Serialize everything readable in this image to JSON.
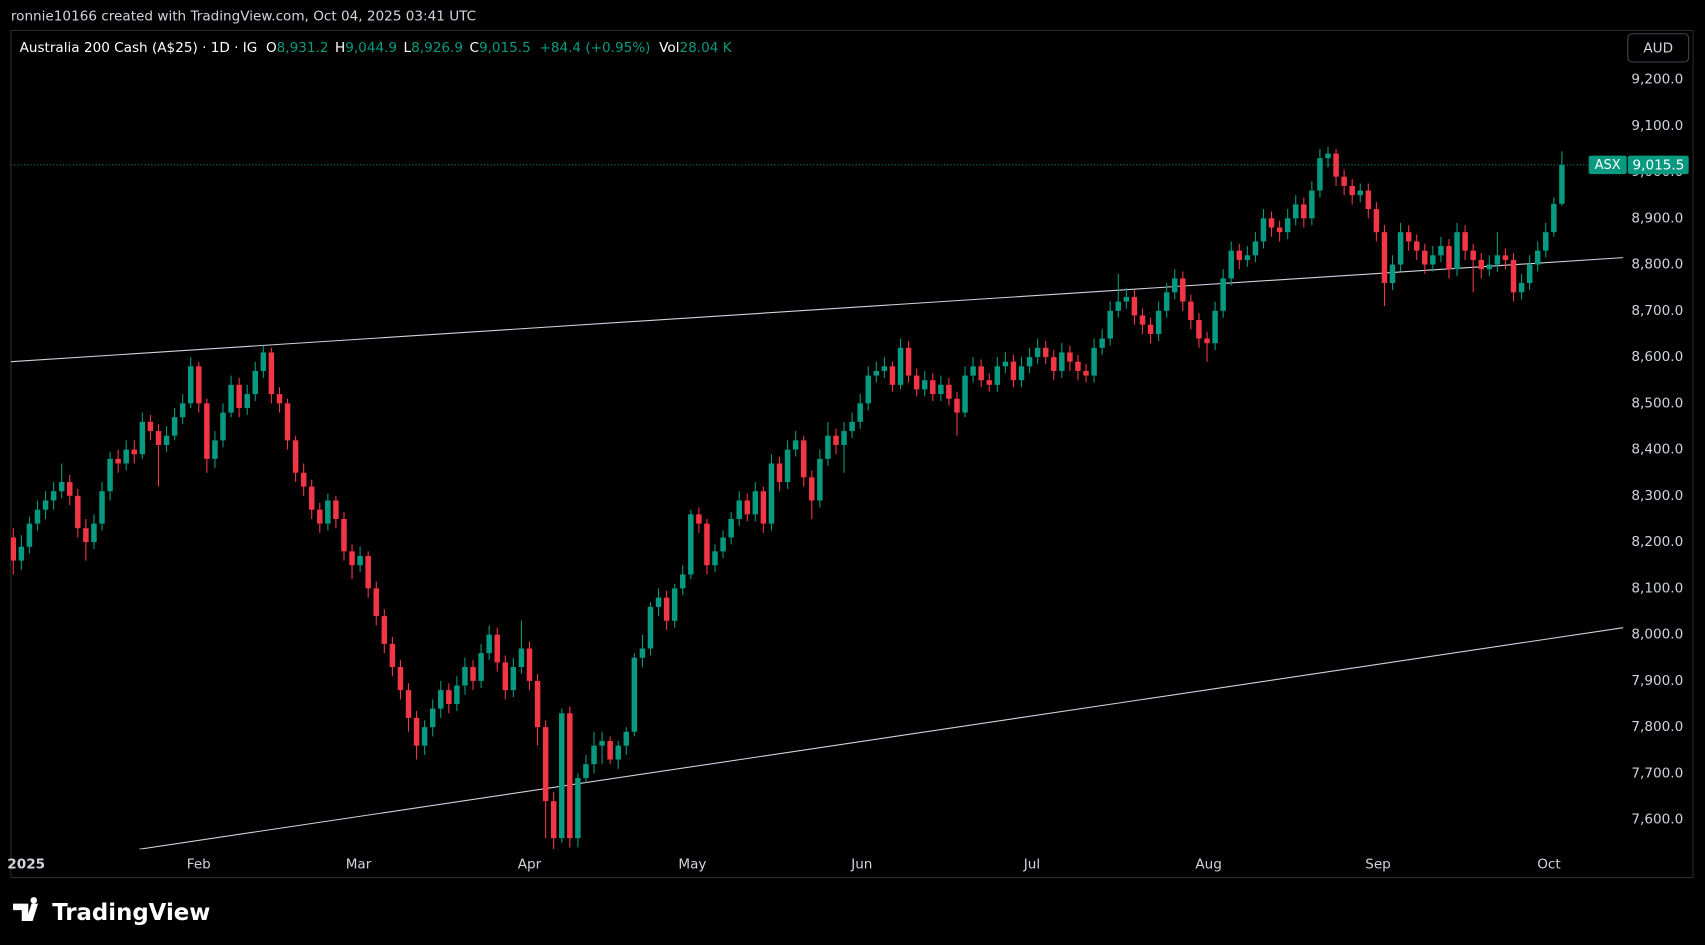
{
  "header": {
    "credit": "ronnie10166 created with TradingView.com, Oct 04, 2025 03:41 UTC"
  },
  "footer": {
    "brand": "TradingView"
  },
  "chart_data": {
    "type": "candlestick",
    "legend": {
      "symbol": "Australia 200 Cash (A$25) · 1D · IG",
      "fields": [
        {
          "key": "O",
          "value": "8,931.2"
        },
        {
          "key": "H",
          "value": "9,044.9"
        },
        {
          "key": "L",
          "value": "8,926.9"
        },
        {
          "key": "C",
          "value": "9,015.5"
        }
      ],
      "change": "+84.4 (+0.95%)",
      "volume": {
        "key": "Vol",
        "value": "28.04 K"
      }
    },
    "currency": "AUD",
    "exchange": "ASX",
    "last_price_label": "9,015.5",
    "colors": {
      "up": "#089981",
      "down": "#f23645",
      "trendline": "#d1d4dc"
    },
    "grid": false,
    "ylim": [
      7536,
      9306
    ],
    "yticks": [
      {
        "value": 7600,
        "label": "7,600.0"
      },
      {
        "value": 7700,
        "label": "7,700.0"
      },
      {
        "value": 7800,
        "label": "7,800.0"
      },
      {
        "value": 7900,
        "label": "7,900.0"
      },
      {
        "value": 8000,
        "label": "8,000.0"
      },
      {
        "value": 8100,
        "label": "8,100.0"
      },
      {
        "value": 8200,
        "label": "8,200.0"
      },
      {
        "value": 8300,
        "label": "8,300.0"
      },
      {
        "value": 8400,
        "label": "8,400.0"
      },
      {
        "value": 8500,
        "label": "8,500.0"
      },
      {
        "value": 8600,
        "label": "8,600.0"
      },
      {
        "value": 8700,
        "label": "8,700.0"
      },
      {
        "value": 8800,
        "label": "8,800.0"
      },
      {
        "value": 8900,
        "label": "8,900.0"
      },
      {
        "value": 9000,
        "label": "9,000.0"
      },
      {
        "value": 9100,
        "label": "9,100.0"
      },
      {
        "value": 9200,
        "label": "9,200.0"
      }
    ],
    "xlim": [
      -0.3,
      199.9
    ],
    "xticks": [
      {
        "value": 1.6,
        "label": "2025"
      },
      {
        "value": 23,
        "label": "Feb"
      },
      {
        "value": 42.8,
        "label": "Mar"
      },
      {
        "value": 64,
        "label": "Apr"
      },
      {
        "value": 84.2,
        "label": "May"
      },
      {
        "value": 105.2,
        "label": "Jun"
      },
      {
        "value": 126.3,
        "label": "Jul"
      },
      {
        "value": 148.2,
        "label": "Aug"
      },
      {
        "value": 169.2,
        "label": "Sep"
      },
      {
        "value": 190.4,
        "label": "Oct"
      }
    ],
    "trendlines": [
      {
        "x": [
          -0.3,
          199.6
        ],
        "y": [
          8590,
          8815
        ]
      },
      {
        "x": [
          15.6,
          199.6
        ],
        "y": [
          7536,
          8015
        ]
      }
    ],
    "candles": [
      [
        8210,
        8230,
        8130,
        8160
      ],
      [
        8160,
        8215,
        8140,
        8190
      ],
      [
        8190,
        8255,
        8175,
        8240
      ],
      [
        8240,
        8290,
        8225,
        8270
      ],
      [
        8270,
        8310,
        8250,
        8290
      ],
      [
        8290,
        8330,
        8270,
        8310
      ],
      [
        8310,
        8370,
        8295,
        8330
      ],
      [
        8330,
        8345,
        8280,
        8300
      ],
      [
        8300,
        8315,
        8210,
        8230
      ],
      [
        8230,
        8250,
        8160,
        8200
      ],
      [
        8200,
        8260,
        8185,
        8240
      ],
      [
        8240,
        8330,
        8225,
        8310
      ],
      [
        8310,
        8395,
        8290,
        8380
      ],
      [
        8380,
        8400,
        8350,
        8370
      ],
      [
        8370,
        8420,
        8355,
        8400
      ],
      [
        8400,
        8420,
        8370,
        8390
      ],
      [
        8390,
        8480,
        8380,
        8460
      ],
      [
        8460,
        8475,
        8420,
        8440
      ],
      [
        8440,
        8455,
        8320,
        8410
      ],
      [
        8410,
        8450,
        8395,
        8430
      ],
      [
        8430,
        8490,
        8420,
        8470
      ],
      [
        8470,
        8520,
        8455,
        8500
      ],
      [
        8500,
        8600,
        8490,
        8580
      ],
      [
        8580,
        8590,
        8480,
        8500
      ],
      [
        8500,
        8510,
        8350,
        8380
      ],
      [
        8380,
        8440,
        8360,
        8420
      ],
      [
        8420,
        8500,
        8405,
        8480
      ],
      [
        8480,
        8560,
        8470,
        8540
      ],
      [
        8540,
        8555,
        8470,
        8490
      ],
      [
        8490,
        8540,
        8475,
        8520
      ],
      [
        8520,
        8590,
        8505,
        8570
      ],
      [
        8570,
        8625,
        8555,
        8610
      ],
      [
        8610,
        8620,
        8500,
        8520
      ],
      [
        8520,
        8535,
        8480,
        8500
      ],
      [
        8500,
        8510,
        8400,
        8420
      ],
      [
        8420,
        8430,
        8330,
        8350
      ],
      [
        8350,
        8370,
        8300,
        8320
      ],
      [
        8320,
        8335,
        8250,
        8270
      ],
      [
        8270,
        8285,
        8220,
        8240
      ],
      [
        8240,
        8305,
        8225,
        8290
      ],
      [
        8290,
        8300,
        8230,
        8250
      ],
      [
        8250,
        8265,
        8160,
        8180
      ],
      [
        8180,
        8195,
        8120,
        8150
      ],
      [
        8150,
        8190,
        8135,
        8170
      ],
      [
        8170,
        8180,
        8080,
        8100
      ],
      [
        8100,
        8115,
        8020,
        8040
      ],
      [
        8040,
        8055,
        7960,
        7980
      ],
      [
        7980,
        7995,
        7910,
        7930
      ],
      [
        7930,
        7945,
        7860,
        7880
      ],
      [
        7880,
        7895,
        7790,
        7820
      ],
      [
        7820,
        7835,
        7730,
        7760
      ],
      [
        7760,
        7815,
        7740,
        7800
      ],
      [
        7800,
        7860,
        7780,
        7840
      ],
      [
        7840,
        7900,
        7820,
        7880
      ],
      [
        7880,
        7895,
        7830,
        7850
      ],
      [
        7850,
        7910,
        7835,
        7890
      ],
      [
        7890,
        7950,
        7870,
        7930
      ],
      [
        7930,
        7945,
        7880,
        7900
      ],
      [
        7900,
        7980,
        7885,
        7960
      ],
      [
        7960,
        8020,
        7945,
        8000
      ],
      [
        8000,
        8015,
        7920,
        7940
      ],
      [
        7940,
        7955,
        7860,
        7880
      ],
      [
        7880,
        7950,
        7865,
        7930
      ],
      [
        7930,
        8030,
        7915,
        7970
      ],
      [
        7970,
        7985,
        7880,
        7900
      ],
      [
        7900,
        7915,
        7760,
        7800
      ],
      [
        7800,
        7815,
        7560,
        7640
      ],
      [
        7640,
        7660,
        7536,
        7560
      ],
      [
        7560,
        7840,
        7550,
        7830
      ],
      [
        7830,
        7845,
        7540,
        7560
      ],
      [
        7560,
        7700,
        7540,
        7690
      ],
      [
        7690,
        7740,
        7680,
        7720
      ],
      [
        7720,
        7790,
        7700,
        7760
      ],
      [
        7760,
        7790,
        7720,
        7770
      ],
      [
        7770,
        7780,
        7720,
        7730
      ],
      [
        7730,
        7770,
        7710,
        7760
      ],
      [
        7760,
        7800,
        7740,
        7790
      ],
      [
        7790,
        7960,
        7780,
        7950
      ],
      [
        7950,
        8000,
        7930,
        7970
      ],
      [
        7970,
        8070,
        7955,
        8060
      ],
      [
        8060,
        8100,
        8040,
        8080
      ],
      [
        8080,
        8095,
        8010,
        8030
      ],
      [
        8030,
        8110,
        8015,
        8100
      ],
      [
        8100,
        8150,
        8085,
        8130
      ],
      [
        8130,
        8270,
        8120,
        8260
      ],
      [
        8260,
        8275,
        8220,
        8240
      ],
      [
        8240,
        8250,
        8130,
        8150
      ],
      [
        8150,
        8195,
        8135,
        8180
      ],
      [
        8180,
        8225,
        8165,
        8210
      ],
      [
        8210,
        8265,
        8195,
        8250
      ],
      [
        8250,
        8310,
        8235,
        8290
      ],
      [
        8290,
        8305,
        8245,
        8260
      ],
      [
        8260,
        8330,
        8245,
        8310
      ],
      [
        8310,
        8320,
        8220,
        8240
      ],
      [
        8240,
        8390,
        8225,
        8370
      ],
      [
        8370,
        8385,
        8310,
        8330
      ],
      [
        8330,
        8420,
        8315,
        8400
      ],
      [
        8400,
        8440,
        8385,
        8420
      ],
      [
        8420,
        8430,
        8320,
        8340
      ],
      [
        8340,
        8355,
        8250,
        8290
      ],
      [
        8290,
        8400,
        8275,
        8380
      ],
      [
        8380,
        8460,
        8365,
        8430
      ],
      [
        8430,
        8445,
        8390,
        8410
      ],
      [
        8410,
        8460,
        8350,
        8440
      ],
      [
        8440,
        8480,
        8425,
        8460
      ],
      [
        8460,
        8520,
        8445,
        8500
      ],
      [
        8500,
        8580,
        8485,
        8560
      ],
      [
        8560,
        8590,
        8545,
        8570
      ],
      [
        8570,
        8600,
        8555,
        8580
      ],
      [
        8580,
        8590,
        8525,
        8540
      ],
      [
        8540,
        8640,
        8530,
        8620
      ],
      [
        8620,
        8635,
        8545,
        8560
      ],
      [
        8560,
        8575,
        8515,
        8530
      ],
      [
        8530,
        8570,
        8515,
        8550
      ],
      [
        8550,
        8565,
        8505,
        8520
      ],
      [
        8520,
        8560,
        8505,
        8540
      ],
      [
        8540,
        8555,
        8495,
        8510
      ],
      [
        8510,
        8525,
        8430,
        8480
      ],
      [
        8480,
        8580,
        8470,
        8560
      ],
      [
        8560,
        8600,
        8545,
        8580
      ],
      [
        8580,
        8595,
        8535,
        8550
      ],
      [
        8550,
        8565,
        8525,
        8540
      ],
      [
        8540,
        8600,
        8525,
        8580
      ],
      [
        8580,
        8610,
        8565,
        8590
      ],
      [
        8590,
        8605,
        8535,
        8550
      ],
      [
        8550,
        8600,
        8535,
        8580
      ],
      [
        8580,
        8620,
        8565,
        8600
      ],
      [
        8600,
        8640,
        8585,
        8620
      ],
      [
        8620,
        8635,
        8585,
        8600
      ],
      [
        8600,
        8615,
        8550,
        8570
      ],
      [
        8570,
        8630,
        8555,
        8610
      ],
      [
        8610,
        8625,
        8570,
        8590
      ],
      [
        8590,
        8605,
        8550,
        8570
      ],
      [
        8570,
        8585,
        8545,
        8560
      ],
      [
        8560,
        8640,
        8545,
        8620
      ],
      [
        8620,
        8660,
        8605,
        8640
      ],
      [
        8640,
        8720,
        8625,
        8700
      ],
      [
        8700,
        8780,
        8685,
        8720
      ],
      [
        8720,
        8750,
        8705,
        8730
      ],
      [
        8730,
        8745,
        8670,
        8690
      ],
      [
        8690,
        8705,
        8650,
        8670
      ],
      [
        8670,
        8685,
        8630,
        8650
      ],
      [
        8650,
        8720,
        8635,
        8700
      ],
      [
        8700,
        8760,
        8685,
        8740
      ],
      [
        8740,
        8790,
        8725,
        8770
      ],
      [
        8770,
        8785,
        8700,
        8720
      ],
      [
        8720,
        8735,
        8660,
        8680
      ],
      [
        8680,
        8695,
        8620,
        8640
      ],
      [
        8640,
        8655,
        8590,
        8630
      ],
      [
        8630,
        8720,
        8615,
        8700
      ],
      [
        8700,
        8790,
        8685,
        8770
      ],
      [
        8770,
        8850,
        8755,
        8830
      ],
      [
        8830,
        8845,
        8790,
        8810
      ],
      [
        8810,
        8840,
        8795,
        8820
      ],
      [
        8820,
        8870,
        8805,
        8850
      ],
      [
        8850,
        8920,
        8835,
        8900
      ],
      [
        8900,
        8915,
        8860,
        8880
      ],
      [
        8880,
        8895,
        8850,
        8870
      ],
      [
        8870,
        8920,
        8855,
        8900
      ],
      [
        8900,
        8950,
        8885,
        8930
      ],
      [
        8930,
        8945,
        8880,
        8900
      ],
      [
        8900,
        8980,
        8885,
        8960
      ],
      [
        8960,
        9050,
        8945,
        9030
      ],
      [
        9030,
        9055,
        9010,
        9040
      ],
      [
        9040,
        9050,
        8970,
        8990
      ],
      [
        8990,
        9005,
        8950,
        8970
      ],
      [
        8970,
        8985,
        8930,
        8950
      ],
      [
        8950,
        8975,
        8935,
        8960
      ],
      [
        8960,
        8975,
        8900,
        8920
      ],
      [
        8920,
        8935,
        8850,
        8870
      ],
      [
        8870,
        8885,
        8710,
        8760
      ],
      [
        8760,
        8820,
        8745,
        8800
      ],
      [
        8800,
        8890,
        8785,
        8870
      ],
      [
        8870,
        8885,
        8830,
        8850
      ],
      [
        8850,
        8865,
        8810,
        8830
      ],
      [
        8830,
        8845,
        8780,
        8800
      ],
      [
        8800,
        8840,
        8785,
        8820
      ],
      [
        8820,
        8860,
        8805,
        8840
      ],
      [
        8840,
        8855,
        8770,
        8790
      ],
      [
        8790,
        8890,
        8775,
        8870
      ],
      [
        8870,
        8885,
        8810,
        8830
      ],
      [
        8830,
        8845,
        8740,
        8810
      ],
      [
        8810,
        8825,
        8770,
        8790
      ],
      [
        8790,
        8820,
        8775,
        8800
      ],
      [
        8800,
        8870,
        8785,
        8820
      ],
      [
        8820,
        8835,
        8790,
        8810
      ],
      [
        8810,
        8825,
        8720,
        8740
      ],
      [
        8740,
        8780,
        8725,
        8760
      ],
      [
        8760,
        8820,
        8745,
        8800
      ],
      [
        8800,
        8850,
        8785,
        8830
      ],
      [
        8830,
        8890,
        8815,
        8870
      ],
      [
        8870,
        8945,
        8860,
        8931.2
      ],
      [
        8931.2,
        9044.9,
        8926.9,
        9015.5
      ]
    ]
  }
}
